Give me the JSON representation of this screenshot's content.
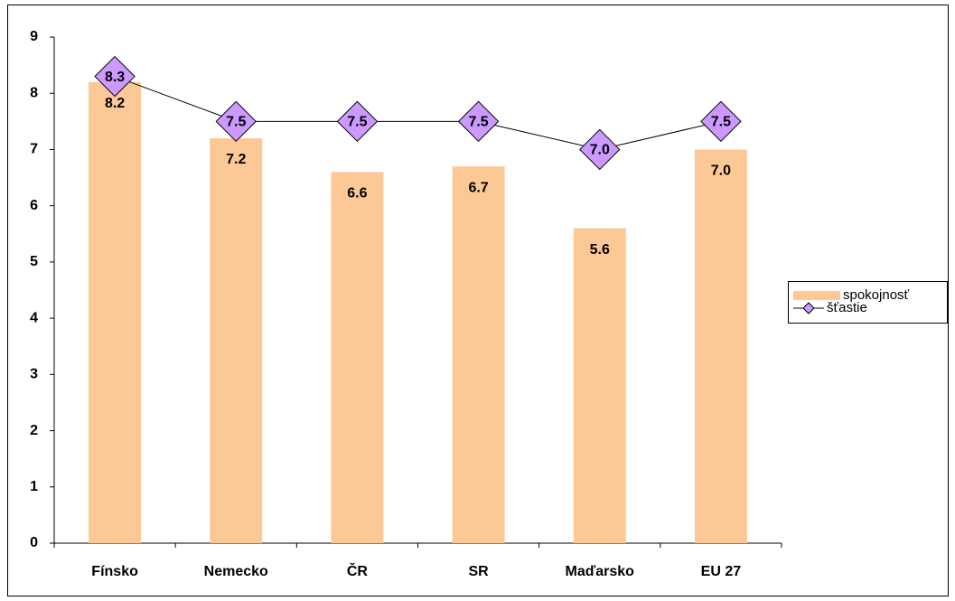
{
  "chart_data": {
    "type": "bar",
    "categories": [
      "Fínsko",
      "Nemecko",
      "ČR",
      "SR",
      "Maďarsko",
      "EU 27"
    ],
    "series": [
      {
        "name": "spokojnosť",
        "type": "bar",
        "color": "#fcc996",
        "values": [
          8.2,
          7.2,
          6.6,
          6.7,
          5.6,
          7.0
        ],
        "value_labels": [
          "8.2",
          "7.2",
          "6.6",
          "6.7",
          "5.6",
          "7.0"
        ]
      },
      {
        "name": "šťastie",
        "type": "line",
        "color": "#cc99ff",
        "values": [
          8.3,
          7.5,
          7.5,
          7.5,
          7.0,
          7.5
        ],
        "value_labels": [
          "8.3",
          "7.5",
          "7.5",
          "7.5",
          "7.0",
          "7.5"
        ]
      }
    ],
    "ylim": [
      0,
      9
    ],
    "yticks": [
      0,
      1,
      2,
      3,
      4,
      5,
      6,
      7,
      8,
      9
    ],
    "grid": false,
    "legend": "right"
  }
}
